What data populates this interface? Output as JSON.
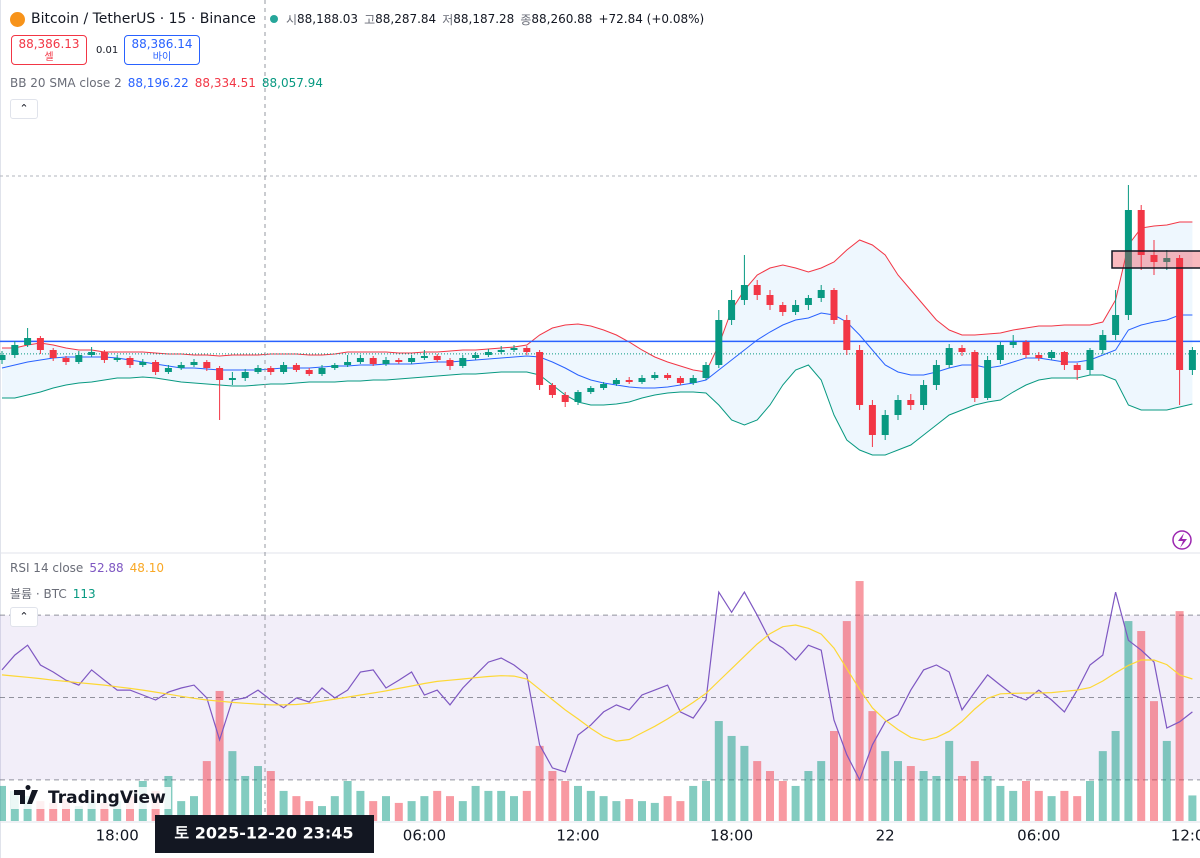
{
  "header": {
    "symbol": "Bitcoin / TetherUS · 15 · Binance",
    "ohlc": [
      {
        "key": "시",
        "label": "88,188.03"
      },
      {
        "key": "고",
        "label": "88,287.84"
      },
      {
        "key": "저",
        "label": "88,187.28"
      },
      {
        "key": "종",
        "value": 88260.88,
        "label": "88,260.88"
      }
    ],
    "change": "+72.84 (+0.08%)",
    "sell": {
      "value": 88386.13,
      "label": "88,386.13",
      "side": "셀"
    },
    "spread": "0.01",
    "buy": {
      "label": "88,386.14",
      "side": "바이"
    }
  },
  "indicators": {
    "bb": {
      "label": "BB 20 SMA close 2",
      "values": [
        "88,196.22",
        "88,334.51",
        "88,057.94"
      ]
    },
    "rsi": {
      "label": "RSI 14 close",
      "values": [
        "52.88",
        "48.10"
      ]
    },
    "volume": {
      "label": "볼륨 · BTC",
      "value": "113"
    }
  },
  "logo": "TradingView",
  "crosshair_label": "토 2025-12-20 23:45",
  "chart_data": [
    {
      "type": "candlestick",
      "categories": [
        null,
        null,
        null,
        null,
        null,
        null,
        null,
        null,
        null,
        "18:00",
        null,
        null,
        null,
        null,
        null,
        null,
        null,
        null,
        null,
        null,
        null,
        null,
        null,
        null,
        null,
        null,
        null,
        null,
        null,
        null,
        null,
        null,
        null,
        "06:00",
        null,
        null,
        null,
        null,
        null,
        null,
        null,
        null,
        null,
        null,
        null,
        "12:00",
        null,
        null,
        null,
        null,
        null,
        null,
        null,
        null,
        null,
        null,
        null,
        "18:00",
        null,
        null,
        null,
        null,
        null,
        null,
        null,
        null,
        null,
        null,
        null,
        "22",
        null,
        null,
        null,
        null,
        null,
        null,
        null,
        null,
        null,
        null,
        null,
        "06:00",
        null,
        null,
        null,
        null,
        null,
        null,
        null,
        null,
        null,
        null,
        null,
        "12:00"
      ],
      "open": [
        88200,
        88250,
        88350,
        88420,
        88300,
        88220,
        88180,
        88250,
        88280,
        88200,
        88220,
        88150,
        88180,
        88080,
        88120,
        88150,
        88180,
        88120,
        88000,
        88020,
        88080,
        88120,
        88080,
        88150,
        88100,
        88060,
        88120,
        88150,
        88180,
        88220,
        88160,
        88200,
        88180,
        88220,
        88240,
        88200,
        88140,
        88220,
        88250,
        88280,
        88300,
        88320,
        88280,
        87950,
        87850,
        87780,
        87880,
        87920,
        87960,
        88000,
        87980,
        88020,
        88050,
        88020,
        87970,
        88020,
        88150,
        88600,
        88800,
        88950,
        88850,
        88750,
        88680,
        88750,
        88820,
        88900,
        88600,
        88300,
        87750,
        87450,
        87650,
        87800,
        87750,
        87950,
        88150,
        88320,
        88280,
        87820,
        88200,
        88350,
        88380,
        88250,
        88220,
        88280,
        88150,
        88100,
        88300,
        88450,
        88650,
        89700,
        89250,
        89180,
        89220,
        88100
      ],
      "high": [
        88290,
        88390,
        88520,
        88440,
        88320,
        88240,
        88290,
        88330,
        88300,
        88250,
        88240,
        88210,
        88200,
        88150,
        88180,
        88210,
        88200,
        88140,
        88080,
        88110,
        88150,
        88140,
        88180,
        88170,
        88120,
        88150,
        88170,
        88250,
        88250,
        88240,
        88230,
        88220,
        88250,
        88300,
        88260,
        88220,
        88250,
        88280,
        88310,
        88340,
        88350,
        88340,
        88300,
        87970,
        87880,
        87900,
        87940,
        87980,
        88020,
        88030,
        88050,
        88080,
        88070,
        88040,
        88050,
        88180,
        88700,
        88900,
        89250,
        89000,
        88900,
        88780,
        88800,
        88850,
        88950,
        88920,
        88650,
        88350,
        87800,
        87700,
        87850,
        87860,
        88000,
        88200,
        88360,
        88350,
        88300,
        88240,
        88380,
        88450,
        88400,
        88280,
        88300,
        88290,
        88170,
        88320,
        88500,
        88900,
        89950,
        89750,
        89400,
        89300,
        89250,
        88330
      ],
      "low": [
        88160,
        88220,
        88330,
        88260,
        88190,
        88150,
        88160,
        88230,
        88170,
        88180,
        88120,
        88130,
        88050,
        88060,
        88100,
        88130,
        88090,
        87600,
        87950,
        87990,
        88060,
        88050,
        88060,
        88080,
        88040,
        88040,
        88100,
        88130,
        88160,
        88140,
        88140,
        88160,
        88160,
        88200,
        88180,
        88100,
        88120,
        88200,
        88230,
        88260,
        88280,
        88250,
        87900,
        87820,
        87730,
        87750,
        87860,
        87900,
        87940,
        87960,
        87960,
        88000,
        88000,
        87950,
        87950,
        88000,
        88120,
        88550,
        88750,
        88800,
        88700,
        88640,
        88650,
        88700,
        88780,
        88560,
        88250,
        87700,
        87330,
        87400,
        87600,
        87700,
        87700,
        87900,
        88120,
        88240,
        87780,
        87800,
        88160,
        88320,
        88220,
        88190,
        88200,
        88100,
        88000,
        88050,
        88260,
        88400,
        88600,
        89100,
        89050,
        89100,
        87750,
        88050
      ],
      "close": [
        88250,
        88350,
        88420,
        88300,
        88220,
        88180,
        88250,
        88280,
        88200,
        88220,
        88150,
        88180,
        88080,
        88120,
        88150,
        88180,
        88120,
        88000,
        88020,
        88080,
        88120,
        88080,
        88150,
        88100,
        88060,
        88120,
        88150,
        88180,
        88220,
        88160,
        88200,
        88180,
        88220,
        88240,
        88200,
        88140,
        88220,
        88250,
        88280,
        88300,
        88320,
        88280,
        87950,
        87850,
        87780,
        87880,
        87920,
        87960,
        88000,
        87980,
        88020,
        88050,
        88020,
        87970,
        88020,
        88150,
        88600,
        88800,
        88950,
        88850,
        88750,
        88680,
        88750,
        88820,
        88900,
        88600,
        88300,
        87750,
        87450,
        87650,
        87800,
        87750,
        87950,
        88150,
        88320,
        88280,
        87820,
        88200,
        88350,
        88380,
        88250,
        88220,
        88280,
        88150,
        88100,
        88300,
        88450,
        88650,
        89700,
        89250,
        89180,
        89220,
        88100,
        88300
      ],
      "up_color": "#089981",
      "down_color": "#f23645",
      "overlays": [
        {
          "color": "#2962ff",
          "values": [
            88120,
            88150,
            88180,
            88200,
            88220,
            88230,
            88230,
            88230,
            88230,
            88220,
            88200,
            88180,
            88160,
            88140,
            88120,
            88120,
            88110,
            88100,
            88100,
            88100,
            88100,
            88110,
            88120,
            88120,
            88120,
            88130,
            88140,
            88140,
            88150,
            88150,
            88160,
            88160,
            88160,
            88170,
            88180,
            88180,
            88190,
            88200,
            88210,
            88220,
            88230,
            88240,
            88230,
            88180,
            88120,
            88050,
            88000,
            87970,
            87950,
            87930,
            87920,
            87920,
            87930,
            87950,
            87970,
            88000,
            88100,
            88200,
            88300,
            88400,
            88480,
            88550,
            88600,
            88620,
            88670,
            88650,
            88580,
            88450,
            88300,
            88150,
            88080,
            88050,
            88050,
            88080,
            88120,
            88150,
            88150,
            88120,
            88140,
            88180,
            88220,
            88220,
            88200,
            88180,
            88180,
            88200,
            88250,
            88300,
            88500,
            88550,
            88580,
            88600,
            88650,
            88650
          ]
        },
        {
          "color": "#f23645",
          "values": [
            88320,
            88320,
            88350,
            88370,
            88350,
            88320,
            88300,
            88300,
            88280,
            88280,
            88280,
            88280,
            88270,
            88260,
            88260,
            88250,
            88250,
            88240,
            88250,
            88250,
            88250,
            88260,
            88260,
            88260,
            88250,
            88250,
            88260,
            88280,
            88280,
            88280,
            88280,
            88270,
            88270,
            88280,
            88280,
            88290,
            88300,
            88300,
            88310,
            88320,
            88330,
            88350,
            88450,
            88520,
            88550,
            88560,
            88540,
            88500,
            88450,
            88380,
            88300,
            88230,
            88180,
            88140,
            88100,
            88080,
            88350,
            88700,
            88900,
            89050,
            89120,
            89150,
            89120,
            89080,
            89120,
            89180,
            89300,
            89400,
            89350,
            89250,
            89050,
            88900,
            88750,
            88600,
            88500,
            88450,
            88450,
            88460,
            88470,
            88500,
            88520,
            88540,
            88540,
            88550,
            88550,
            88550,
            88580,
            88800,
            89350,
            89520,
            89540,
            89550,
            89580,
            89580
          ]
        },
        {
          "color": "#089981",
          "values": [
            87820,
            87820,
            87850,
            87880,
            87920,
            87950,
            87970,
            87980,
            88000,
            88020,
            88020,
            88030,
            88020,
            88000,
            87980,
            87970,
            87960,
            87950,
            87940,
            87940,
            87950,
            87960,
            87960,
            87970,
            87980,
            87980,
            87980,
            87990,
            87990,
            88000,
            88000,
            88010,
            88020,
            88030,
            88040,
            88050,
            88060,
            88060,
            88070,
            88080,
            88080,
            88080,
            88050,
            87950,
            87850,
            87780,
            87750,
            87750,
            87760,
            87780,
            87820,
            87850,
            87870,
            87880,
            87880,
            87870,
            87750,
            87600,
            87550,
            87600,
            87750,
            87950,
            88100,
            88150,
            88000,
            87650,
            87400,
            87300,
            87250,
            87250,
            87300,
            87350,
            87450,
            87550,
            87650,
            87700,
            87750,
            87780,
            87800,
            87880,
            87950,
            88000,
            88020,
            88020,
            88020,
            88050,
            88050,
            88000,
            87750,
            87700,
            87700,
            87700,
            87730,
            87760
          ]
        }
      ],
      "band_color": "#2196f3",
      "ylim": [
        86300,
        90800
      ]
    },
    {
      "type": "bar",
      "values": [
        155,
        133,
        110,
        88,
        80,
        97,
        66,
        88,
        80,
        88,
        110,
        177,
        133,
        199,
        88,
        110,
        265,
        575,
        309,
        199,
        243,
        221,
        133,
        110,
        88,
        66,
        110,
        177,
        133,
        88,
        110,
        80,
        88,
        110,
        133,
        110,
        88,
        155,
        133,
        133,
        110,
        133,
        332,
        221,
        177,
        155,
        133,
        110,
        88,
        97,
        88,
        80,
        110,
        88,
        155,
        177,
        442,
        376,
        332,
        265,
        221,
        177,
        155,
        221,
        265,
        398,
        884,
        1061,
        486,
        309,
        265,
        243,
        221,
        199,
        354,
        199,
        265,
        199,
        155,
        133,
        177,
        133,
        110,
        133,
        110,
        177,
        309,
        398,
        884,
        840,
        530,
        354,
        928,
        113
      ],
      "up_color": "rgba(8,153,129,0.5)",
      "down_color": "rgba(242,54,69,0.5)",
      "ylim": [
        0,
        1070
      ]
    },
    {
      "type": "line",
      "series": [
        {
          "color": "#7e57c2",
          "values": [
            56.7,
            60.3,
            62.7,
            57.9,
            56.2,
            54.2,
            53.0,
            56.7,
            54.2,
            51.8,
            51.8,
            50.6,
            49.4,
            51.3,
            52.3,
            53.0,
            49.9,
            39.7,
            49.4,
            49.9,
            51.8,
            49.4,
            47.5,
            49.9,
            48.9,
            52.3,
            49.9,
            51.8,
            56.2,
            56.7,
            52.3,
            54.2,
            56.2,
            50.6,
            51.8,
            48.2,
            52.3,
            55.5,
            58.6,
            59.6,
            57.9,
            55.5,
            38.5,
            32.9,
            31.9,
            40.9,
            43.3,
            46.5,
            48.2,
            47.0,
            50.6,
            51.8,
            53.0,
            46.5,
            45.0,
            49.4,
            75.6,
            70.7,
            75.6,
            70.0,
            63.9,
            62.0,
            59.1,
            62.7,
            61.5,
            44.5,
            36.1,
            30.0,
            38.5,
            44.1,
            45.8,
            51.8,
            56.7,
            57.9,
            56.2,
            47.0,
            51.3,
            55.5,
            53.0,
            50.6,
            49.4,
            51.8,
            49.4,
            46.5,
            51.8,
            57.9,
            60.3,
            75.6,
            63.9,
            61.5,
            58.6,
            42.6,
            44.1,
            46.5
          ]
        },
        {
          "color": "#fdd835",
          "values": [
            55.5,
            55.2,
            54.9,
            54.6,
            54.2,
            53.9,
            53.6,
            53.3,
            53.0,
            52.6,
            52.2,
            51.8,
            51.3,
            50.8,
            50.3,
            49.8,
            49.4,
            49.1,
            48.8,
            48.6,
            48.4,
            48.2,
            48.2,
            48.3,
            48.6,
            49.1,
            49.6,
            50.1,
            50.6,
            51.1,
            51.6,
            52.2,
            52.8,
            53.4,
            53.9,
            54.2,
            54.5,
            54.8,
            55.1,
            55.3,
            55.2,
            54.5,
            52.0,
            49.5,
            47.0,
            44.8,
            42.5,
            40.5,
            39.4,
            39.8,
            41.4,
            43.0,
            44.8,
            46.8,
            48.8,
            51.0,
            54.0,
            57.0,
            60.0,
            63.0,
            65.5,
            67.2,
            67.6,
            66.8,
            65.4,
            62.0,
            57.0,
            52.0,
            47.5,
            44.5,
            42.2,
            40.3,
            39.6,
            40.3,
            41.8,
            44.2,
            47.2,
            49.8,
            50.9,
            51.0,
            51.1,
            51.1,
            51.2,
            51.5,
            51.8,
            52.4,
            54.0,
            56.0,
            57.8,
            59.1,
            59.1,
            58.0,
            55.5,
            54.5
          ]
        }
      ],
      "levels": [
        30,
        50,
        70
      ],
      "band_color": "#7e57c2",
      "ylim": [
        20,
        80
      ]
    }
  ]
}
